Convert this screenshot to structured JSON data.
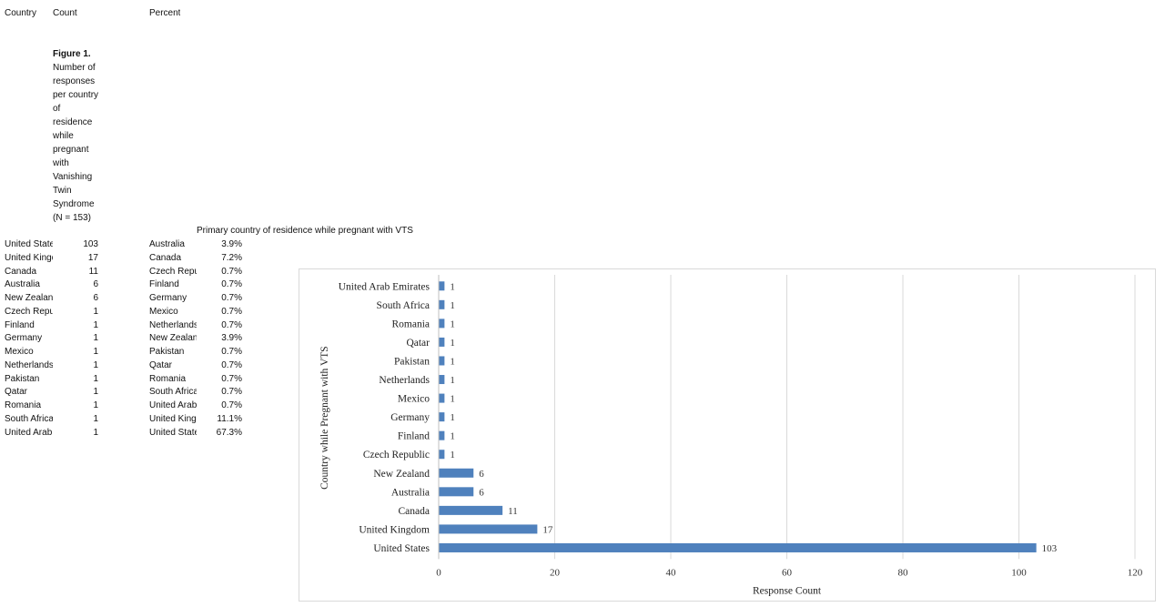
{
  "table": {
    "headers": {
      "country": "Country",
      "count": "Count",
      "percent": "Percent"
    },
    "count_rows": [
      {
        "country": "United States",
        "count": "103"
      },
      {
        "country": "United Kingdom",
        "count": "17"
      },
      {
        "country": "Canada",
        "count": "11"
      },
      {
        "country": "Australia",
        "count": "6"
      },
      {
        "country": "New Zealand",
        "count": "6"
      },
      {
        "country": "Czech Republic",
        "count": "1"
      },
      {
        "country": "Finland",
        "count": "1"
      },
      {
        "country": "Germany",
        "count": "1"
      },
      {
        "country": "Mexico",
        "count": "1"
      },
      {
        "country": "Netherlands",
        "count": "1"
      },
      {
        "country": "Pakistan",
        "count": "1"
      },
      {
        "country": "Qatar",
        "count": "1"
      },
      {
        "country": "Romania",
        "count": "1"
      },
      {
        "country": "South Africa",
        "count": "1"
      },
      {
        "country": "United Arab Emirates",
        "count": "1"
      }
    ],
    "percent_rows": [
      {
        "country": "Australia",
        "percent": "3.9%"
      },
      {
        "country": "Canada",
        "percent": "7.2%"
      },
      {
        "country": "Czech Republic",
        "percent": "0.7%"
      },
      {
        "country": "Finland",
        "percent": "0.7%"
      },
      {
        "country": "Germany",
        "percent": "0.7%"
      },
      {
        "country": "Mexico",
        "percent": "0.7%"
      },
      {
        "country": "Netherlands",
        "percent": "0.7%"
      },
      {
        "country": "New Zealand",
        "percent": "3.9%"
      },
      {
        "country": "Pakistan",
        "percent": "0.7%"
      },
      {
        "country": "Qatar",
        "percent": "0.7%"
      },
      {
        "country": "Romania",
        "percent": "0.7%"
      },
      {
        "country": "South Africa",
        "percent": "0.7%"
      },
      {
        "country": "United Arab Emirates",
        "percent": "0.7%"
      },
      {
        "country": "United Kingdom",
        "percent": "11.1%"
      },
      {
        "country": "United States",
        "percent": "67.3%"
      }
    ]
  },
  "caption": {
    "label": "Figure 1.",
    "text": "Number of responses per country of residence while pregnant with Vanishing Twin Syndrome (N = 153)"
  },
  "percent_title": "Primary country of residence while pregnant with VTS",
  "chart_data": {
    "type": "bar",
    "orientation": "horizontal",
    "categories": [
      "United States",
      "United Kingdom",
      "Canada",
      "Australia",
      "New Zealand",
      "Czech Republic",
      "Finland",
      "Germany",
      "Mexico",
      "Netherlands",
      "Pakistan",
      "Qatar",
      "Romania",
      "South Africa",
      "United Arab Emirates"
    ],
    "values": [
      103,
      17,
      11,
      6,
      6,
      1,
      1,
      1,
      1,
      1,
      1,
      1,
      1,
      1,
      1
    ],
    "xlabel": "Response Count",
    "ylabel": "Country while Pregnant with VTS",
    "xlim": [
      0,
      120
    ],
    "xticks": [
      0,
      20,
      40,
      60,
      80,
      100,
      120
    ],
    "grid": "vertical",
    "data_labels": true,
    "bar_color": "#4f81bd"
  },
  "colors": {
    "bar": "#4f81bd",
    "grid": "#d9d9d9",
    "frame": "#d9d9d9"
  }
}
